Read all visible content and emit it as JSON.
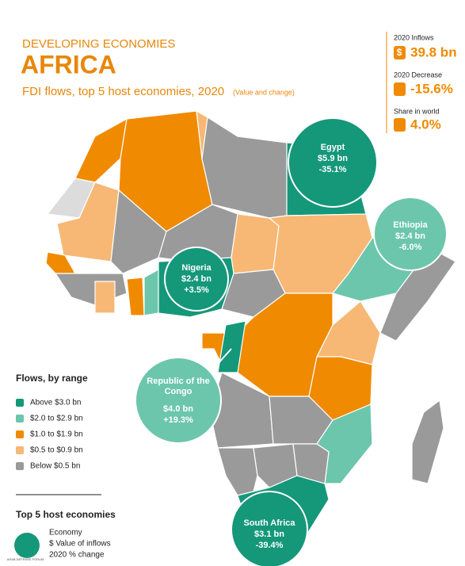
{
  "header": {
    "kicker": "DEVELOPING ECONOMIES",
    "title": "AFRICA",
    "subtitle": "FDI flows, top 5 host economies, 2020",
    "subtitle_note": "(Value and change)"
  },
  "stats": [
    {
      "label": "2020 Inflows",
      "value": "39.8 bn"
    },
    {
      "label": "2020 Decrease",
      "value": "-15.6%"
    },
    {
      "label": "Share in world",
      "value": "4.0%"
    }
  ],
  "callouts": [
    {
      "economy": "Egypt",
      "value": "$5.9 bn",
      "change": "-35.1%"
    },
    {
      "economy": "Ethiopia",
      "value": "$2.4 bn",
      "change": "-6.0%"
    },
    {
      "economy": "Nigeria",
      "value": "$2.4 bn",
      "change": "+3.5%"
    },
    {
      "economy": "Republic of the Congo",
      "value": "$4.0 bn",
      "change": "+19.3%"
    },
    {
      "economy": "South Africa",
      "value": "$3.1 bn",
      "change": "-39.4%"
    }
  ],
  "legend": {
    "title": "Flows, by range",
    "items": [
      {
        "label": "Above $3.0 bn",
        "color": "#15977a"
      },
      {
        "label": "$2.0 to $2.9 bn",
        "color": "#6cc6ab"
      },
      {
        "label": "$1.0 to $1.9 bn",
        "color": "#f08a00"
      },
      {
        "label": "$0.5 to $0.9 bn",
        "color": "#f6b874"
      },
      {
        "label": "Below $0.5 bn",
        "color": "#9a9a9a"
      }
    ]
  },
  "key": {
    "title": "Top 5 host economies",
    "lines": [
      "Economy",
      "$ Value of inflows",
      "2020 % change"
    ]
  },
  "watermark": "ARAB DEFENSE FORUM"
}
